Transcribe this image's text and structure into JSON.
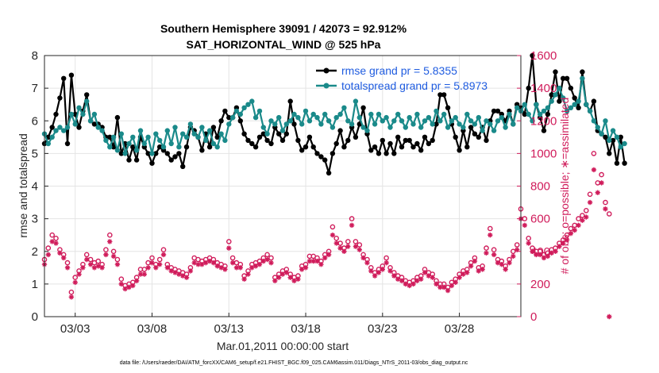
{
  "chart_data": {
    "type": "line",
    "title": "Southern Hemisphere 39091 / 42073 = 92.912%",
    "subtitle": "SAT_HORIZONTAL_WIND @ 525 hPa",
    "xlabel": "Mar.01,2011 00:00:00 start",
    "ylabel_left": "rmse and totalspread",
    "ylabel_right": "# of obs: o=possible; ∗=assimilated",
    "footer": "data file: /Users/raeder/DAI/ATM_forcXX/CAM6_setup/f.e21.FHIST_BGC.f09_025.CAM6assim.011/Diags_NTrS_2011-03/obs_diag_output.nc",
    "xlim": [
      1.0,
      32.0
    ],
    "ylim_left": [
      0,
      8
    ],
    "ylim_right": [
      0,
      1600
    ],
    "x_ticks": [
      3,
      8,
      13,
      18,
      23,
      28
    ],
    "x_tick_labels": [
      "03/03",
      "03/08",
      "03/13",
      "03/18",
      "03/23",
      "03/28"
    ],
    "y_ticks_left": [
      "0",
      "1",
      "2",
      "3",
      "4",
      "5",
      "6",
      "7",
      "8"
    ],
    "y_ticks_right": [
      "0",
      "200",
      "400",
      "600",
      "800",
      "1000",
      "1200",
      "1400",
      "1600"
    ],
    "grid": true,
    "legend": {
      "placement": "top-right",
      "entries": [
        "rmse grand pr = 5.8355",
        "totalspread grand pr = 5.8973"
      ]
    },
    "series": [
      {
        "name": "rmse grand pr = 5.8355",
        "color": "#000000",
        "axis": "left",
        "marker": "circle",
        "x_start": 1.0,
        "x_step": 0.25,
        "values": [
          5.3,
          5.5,
          5.8,
          6.2,
          6.7,
          7.3,
          5.3,
          7.4,
          6.2,
          5.8,
          6.3,
          6.8,
          6.0,
          5.9,
          5.9,
          5.8,
          5.5,
          5.5,
          5.2,
          6.1,
          5.0,
          5.3,
          4.8,
          5.2,
          4.8,
          5.5,
          5.2,
          5.0,
          4.7,
          5.0,
          5.2,
          5.1,
          5.0,
          4.8,
          4.9,
          5.0,
          4.6,
          5.2,
          5.8,
          5.7,
          5.5,
          5.1,
          5.6,
          5.2,
          5.8,
          5.5,
          6.0,
          6.3,
          6.1,
          6.1,
          6.4,
          6.0,
          5.6,
          5.4,
          5.3,
          5.2,
          5.5,
          5.6,
          5.4,
          5.3,
          5.8,
          5.6,
          5.4,
          5.6,
          6.6,
          5.9,
          5.4,
          5.1,
          5.2,
          5.5,
          5.2,
          5.0,
          4.9,
          4.8,
          4.4,
          5.0,
          5.3,
          5.7,
          5.2,
          5.4,
          5.8,
          5.5,
          5.9,
          6.4,
          5.6,
          5.1,
          5.2,
          5.0,
          5.4,
          5.0,
          5.3,
          5.0,
          5.5,
          5.2,
          5.4,
          5.4,
          5.2,
          5.3,
          5.1,
          5.5,
          5.3,
          5.4,
          5.9,
          6.8,
          6.8,
          6.4,
          5.9,
          5.5,
          5.1,
          5.7,
          5.2,
          5.8,
          5.6,
          5.5,
          5.8,
          5.4,
          6.0,
          6.3,
          6.3,
          6.2,
          6.0,
          6.3,
          5.9,
          6.5,
          6.4,
          6.2,
          7.0,
          8.0,
          6.5,
          6.1,
          5.7,
          6.2,
          6.8,
          7.5,
          6.6,
          7.3,
          7.3,
          7.0,
          6.7,
          6.4,
          7.5,
          6.5,
          6.3,
          6.6,
          5.7,
          5.6,
          5.5,
          5.0,
          5.4,
          4.7,
          5.5,
          4.7
        ]
      },
      {
        "name": "totalspread grand pr = 5.8973",
        "color": "#1a8a8a",
        "axis": "left",
        "marker": "circle",
        "x_start": 1.0,
        "x_step": 0.25,
        "values": [
          5.6,
          5.3,
          5.5,
          5.7,
          5.8,
          5.7,
          5.8,
          6.2,
          5.9,
          6.4,
          6.2,
          6.6,
          6.0,
          6.2,
          5.8,
          5.7,
          5.4,
          5.2,
          5.5,
          5.1,
          5.6,
          5.0,
          5.3,
          5.5,
          5.1,
          5.7,
          5.3,
          5.5,
          5.0,
          5.6,
          5.4,
          5.2,
          5.7,
          5.3,
          5.8,
          5.2,
          5.6,
          5.5,
          5.9,
          5.6,
          5.5,
          5.8,
          5.4,
          5.7,
          5.3,
          5.2,
          5.6,
          5.4,
          5.9,
          6.1,
          6.3,
          6.2,
          6.4,
          6.5,
          6.6,
          6.1,
          6.3,
          5.8,
          5.6,
          6.0,
          5.9,
          6.1,
          5.7,
          5.9,
          6.0,
          6.2,
          6.1,
          5.9,
          6.3,
          6.0,
          6.2,
          6.1,
          5.9,
          6.2,
          6.0,
          5.8,
          6.1,
          6.2,
          6.4,
          6.0,
          5.9,
          6.6,
          6.1,
          5.8,
          5.7,
          6.2,
          5.9,
          6.2,
          6.0,
          6.1,
          5.8,
          6.0,
          6.2,
          6.0,
          5.8,
          6.1,
          5.9,
          6.2,
          5.8,
          6.0,
          6.1,
          5.9,
          6.3,
          6.0,
          6.2,
          5.8,
          6.0,
          6.1,
          5.9,
          5.8,
          6.2,
          6.0,
          5.9,
          6.1,
          5.7,
          6.0,
          5.9,
          5.7,
          6.0,
          6.1,
          5.8,
          6.2,
          5.9,
          6.4,
          6.3,
          6.5,
          6.2,
          6.0,
          6.5,
          6.2,
          6.3,
          6.4,
          6.6,
          6.8,
          7.0,
          6.7,
          6.3,
          6.4,
          6.5,
          6.6,
          7.3,
          6.5,
          6.3,
          6.0,
          5.8,
          5.6,
          6.0,
          5.4,
          5.7,
          5.5,
          5.2,
          5.3
        ]
      },
      {
        "name": "possible",
        "color": "#d01c5b",
        "axis": "right",
        "marker": "o",
        "x_start": 1.0,
        "x_step": 0.25,
        "values": [
          350,
          420,
          500,
          480,
          410,
          380,
          330,
          150,
          240,
          280,
          320,
          380,
          350,
          330,
          340,
          320,
          410,
          500,
          400,
          350,
          230,
          190,
          200,
          210,
          240,
          290,
          290,
          330,
          360,
          320,
          350,
          410,
          320,
          300,
          290,
          280,
          270,
          260,
          300,
          360,
          350,
          340,
          350,
          360,
          350,
          330,
          320,
          310,
          460,
          360,
          330,
          320,
          250,
          280,
          320,
          330,
          340,
          360,
          380,
          360,
          240,
          260,
          280,
          290,
          260,
          240,
          250,
          310,
          320,
          370,
          370,
          360,
          340,
          380,
          400,
          550,
          480,
          450,
          420,
          460,
          600,
          460,
          440,
          380,
          350,
          300,
          270,
          290,
          310,
          360,
          300,
          270,
          250,
          240,
          220,
          210,
          220,
          240,
          250,
          290,
          270,
          260,
          220,
          200,
          200,
          180,
          210,
          230,
          260,
          280,
          290,
          330,
          360,
          300,
          310,
          420,
          540,
          410,
          350,
          340,
          310,
          350,
          400,
          440,
          660,
          600,
          480,
          420,
          400,
          400,
          380,
          390,
          410,
          420,
          450,
          470,
          500,
          540,
          560,
          600,
          620,
          650,
          750,
          1000,
          820,
          870,
          700,
          630
        ]
      },
      {
        "name": "assimilated",
        "color": "#d01c5b",
        "axis": "right",
        "marker": "asterisk",
        "x_start": 1.0,
        "x_step": 0.25,
        "values": [
          320,
          380,
          460,
          450,
          390,
          360,
          300,
          120,
          210,
          260,
          300,
          350,
          320,
          300,
          310,
          300,
          380,
          460,
          370,
          320,
          200,
          170,
          180,
          190,
          220,
          260,
          260,
          300,
          330,
          300,
          320,
          380,
          300,
          280,
          270,
          260,
          250,
          240,
          280,
          330,
          320,
          320,
          330,
          340,
          330,
          310,
          300,
          290,
          420,
          330,
          300,
          300,
          230,
          260,
          300,
          310,
          320,
          340,
          350,
          330,
          220,
          240,
          260,
          270,
          240,
          220,
          230,
          290,
          300,
          340,
          340,
          340,
          320,
          360,
          380,
          500,
          450,
          420,
          400,
          430,
          560,
          430,
          410,
          360,
          330,
          280,
          250,
          270,
          290,
          330,
          280,
          250,
          230,
          220,
          200,
          190,
          200,
          220,
          230,
          270,
          250,
          240,
          200,
          180,
          180,
          160,
          190,
          210,
          240,
          260,
          270,
          310,
          340,
          280,
          290,
          390,
          500,
          380,
          330,
          320,
          290,
          330,
          370,
          410,
          600,
          560,
          450,
          400,
          380,
          380,
          360,
          370,
          390,
          400,
          430,
          450,
          470,
          510,
          530,
          560,
          590,
          610,
          700,
          900,
          760,
          820,
          660,
          0
        ]
      }
    ]
  }
}
